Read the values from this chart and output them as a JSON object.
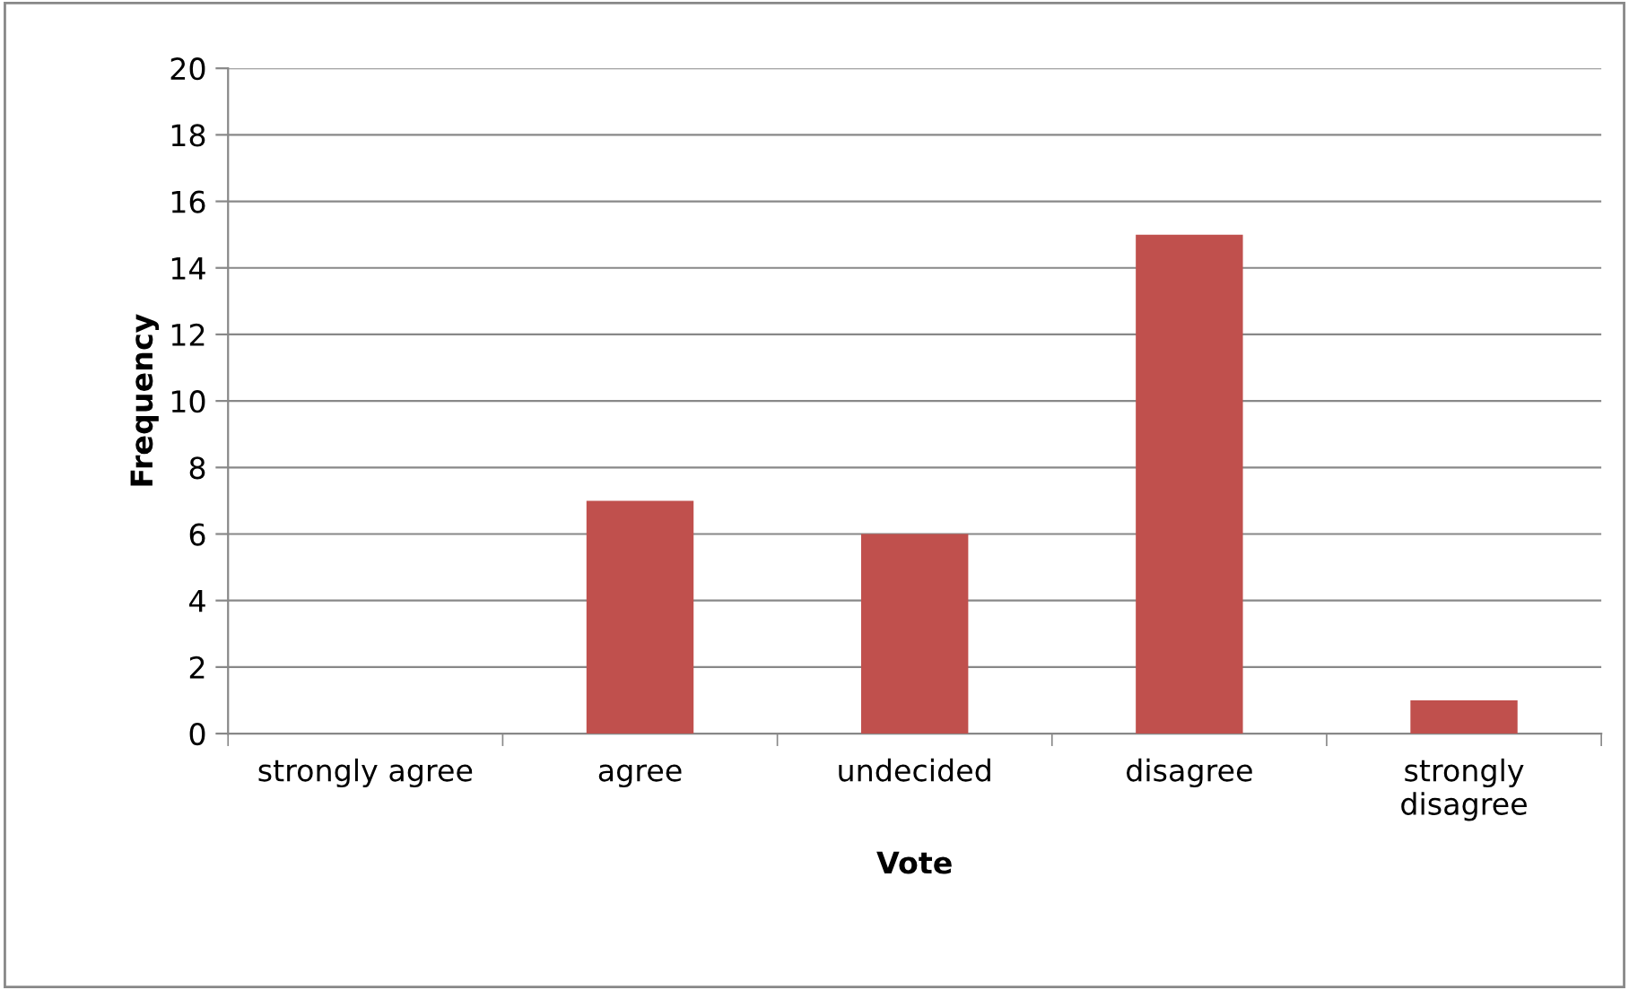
{
  "chart_data": {
    "type": "bar",
    "xlabel": "Vote",
    "ylabel": "Frequency",
    "categories": [
      "strongly agree",
      "agree",
      "undecided",
      "disagree",
      "strongly\ndisagree"
    ],
    "values": [
      0,
      7,
      6,
      15,
      1
    ],
    "color": "#c0504d",
    "ylim": [
      0,
      20
    ],
    "yticks": [
      0,
      2,
      4,
      6,
      8,
      10,
      12,
      14,
      16,
      18,
      20
    ],
    "grid": "y",
    "legend": false
  }
}
